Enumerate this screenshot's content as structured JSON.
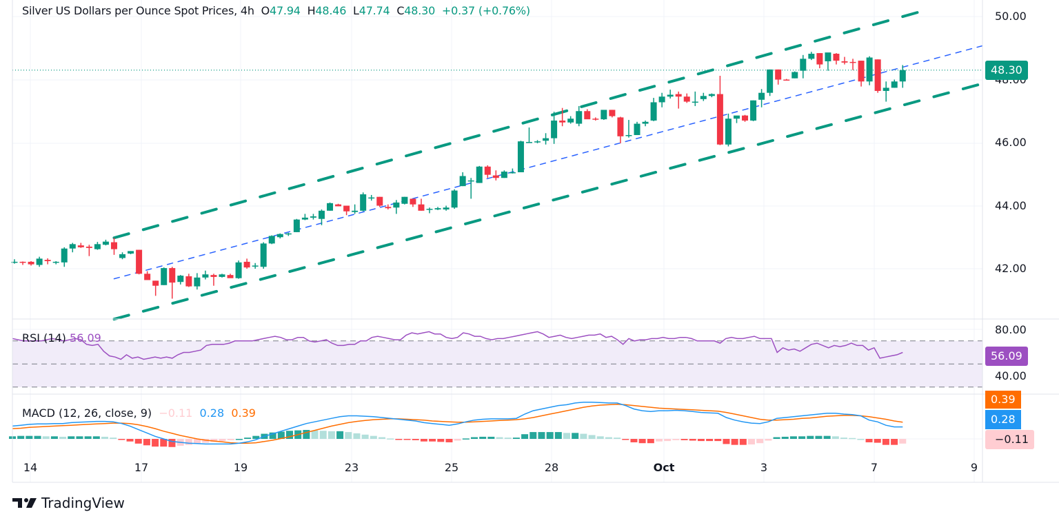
{
  "header": {
    "symbol_title": "Silver US Dollars per Ounce Spot Prices, 4h",
    "open_label": "O",
    "open": "47.94",
    "high_label": "H",
    "high": "48.46",
    "low_label": "L",
    "low": "47.74",
    "close_label": "C",
    "close": "48.30",
    "change": "+0.37",
    "change_pct": "(+0.76%)"
  },
  "price_axis": {
    "ticks": [
      "50.00",
      "48.00",
      "46.00",
      "44.00",
      "42.00"
    ],
    "last_price_badge": "48.30"
  },
  "rsi": {
    "label": "RSI (14)",
    "value": "56.09",
    "axis_ticks": [
      "80.00",
      "40.00"
    ],
    "badge": "56.09",
    "color": "#9c4fc1"
  },
  "macd": {
    "label": "MACD (12, 26, close, 9)",
    "histogram_value": "−0.11",
    "macd_value": "0.28",
    "signal_value": "0.39",
    "badges": {
      "signal": "0.39",
      "macd": "0.28",
      "histogram": "−0.11"
    },
    "colors": {
      "macd": "#2196f3",
      "signal": "#ff6d00",
      "hist_up_strong": "#26a69a",
      "hist_up_weak": "#b2dfdb",
      "hist_down_strong": "#ff5252",
      "hist_down_weak": "#ffcdd2"
    }
  },
  "time_axis": {
    "labels": [
      "14",
      "17",
      "19",
      "23",
      "25",
      "28",
      "Oct",
      "3",
      "7",
      "9"
    ]
  },
  "branding": {
    "name": "TradingView"
  },
  "colors": {
    "up": "#089981",
    "down": "#f23645",
    "channel": "#089981",
    "midline": "#2962ff",
    "rsi_band": "#ede7f6"
  },
  "chart_data": {
    "type": "candlestick",
    "title": "Silver US Dollars per Ounce Spot Prices, 4h",
    "ylabel": "USD per ounce",
    "ylim": [
      40.5,
      50.3
    ],
    "x_tick_labels": [
      "14",
      "17",
      "19",
      "23",
      "25",
      "28",
      "Oct",
      "3",
      "7",
      "9"
    ],
    "ohlc": [
      [
        42.22,
        42.3,
        42.16,
        42.22
      ],
      [
        42.22,
        42.23,
        42.12,
        42.2
      ],
      [
        42.22,
        42.24,
        42.1,
        42.14
      ],
      [
        42.12,
        42.38,
        42.06,
        42.32
      ],
      [
        42.28,
        42.33,
        42.14,
        42.24
      ],
      [
        42.22,
        42.24,
        42.14,
        42.22
      ],
      [
        42.2,
        42.68,
        42.06,
        42.64
      ],
      [
        42.64,
        42.82,
        42.52,
        42.78
      ],
      [
        42.74,
        42.82,
        42.66,
        42.68
      ],
      [
        42.7,
        42.76,
        42.4,
        42.66
      ],
      [
        42.62,
        42.85,
        42.6,
        42.78
      ],
      [
        42.76,
        42.92,
        42.74,
        42.86
      ],
      [
        42.84,
        42.98,
        42.44,
        42.62
      ],
      [
        42.34,
        42.52,
        42.3,
        42.46
      ],
      [
        42.48,
        42.56,
        42.46,
        42.56
      ],
      [
        42.6,
        42.6,
        41.82,
        41.84
      ],
      [
        41.84,
        41.92,
        41.72,
        41.64
      ],
      [
        41.62,
        41.62,
        41.14,
        41.46
      ],
      [
        41.48,
        42.04,
        41.48,
        42.02
      ],
      [
        42.02,
        42.06,
        41.05,
        41.56
      ],
      [
        41.58,
        41.8,
        41.5,
        41.78
      ],
      [
        41.76,
        41.84,
        41.42,
        41.44
      ],
      [
        41.44,
        41.86,
        41.34,
        41.72
      ],
      [
        41.72,
        41.94,
        41.66,
        41.82
      ],
      [
        41.8,
        41.84,
        41.46,
        41.74
      ],
      [
        41.74,
        41.84,
        41.72,
        41.82
      ],
      [
        41.8,
        41.84,
        41.72,
        41.7
      ],
      [
        41.7,
        42.26,
        41.68,
        42.2
      ],
      [
        42.22,
        42.32,
        42.0,
        42.04
      ],
      [
        42.1,
        42.18,
        42.0,
        42.1
      ],
      [
        42.06,
        42.84,
        42.0,
        42.8
      ],
      [
        42.8,
        43.06,
        42.78,
        43.04
      ],
      [
        43.0,
        43.12,
        42.96,
        43.1
      ],
      [
        43.1,
        43.14,
        43.04,
        43.12
      ],
      [
        43.16,
        43.58,
        43.16,
        43.56
      ],
      [
        43.56,
        43.74,
        43.54,
        43.62
      ],
      [
        43.62,
        43.74,
        43.56,
        43.66
      ],
      [
        43.58,
        43.88,
        43.38,
        43.84
      ],
      [
        43.84,
        44.1,
        43.84,
        44.08
      ],
      [
        44.04,
        44.06,
        43.98,
        43.98
      ],
      [
        44.0,
        44.0,
        43.7,
        43.82
      ],
      [
        43.8,
        44.04,
        43.74,
        43.84
      ],
      [
        43.84,
        44.42,
        43.82,
        44.36
      ],
      [
        44.26,
        44.34,
        44.16,
        44.26
      ],
      [
        44.28,
        44.28,
        43.96,
        44.0
      ],
      [
        43.96,
        44.04,
        43.88,
        43.92
      ],
      [
        43.94,
        44.18,
        43.74,
        44.1
      ],
      [
        44.06,
        44.28,
        44.04,
        44.28
      ],
      [
        44.22,
        44.22,
        43.96,
        44.04
      ],
      [
        44.04,
        44.22,
        43.84,
        43.84
      ],
      [
        43.88,
        43.94,
        43.76,
        43.9
      ],
      [
        43.88,
        43.96,
        43.86,
        43.92
      ],
      [
        43.88,
        44.0,
        43.84,
        43.94
      ],
      [
        43.94,
        44.52,
        43.9,
        44.48
      ],
      [
        44.62,
        45.06,
        44.62,
        44.94
      ],
      [
        44.8,
        44.88,
        44.22,
        44.8
      ],
      [
        44.72,
        45.26,
        44.72,
        45.24
      ],
      [
        45.24,
        45.28,
        44.88,
        44.98
      ],
      [
        44.96,
        45.12,
        44.8,
        44.88
      ],
      [
        44.88,
        45.12,
        44.88,
        45.08
      ],
      [
        45.06,
        45.18,
        45.02,
        45.06
      ],
      [
        45.06,
        46.06,
        45.06,
        46.04
      ],
      [
        46.02,
        46.48,
        46.0,
        46.02
      ],
      [
        46.04,
        46.08,
        45.98,
        46.04
      ],
      [
        46.06,
        46.3,
        45.94,
        46.14
      ],
      [
        46.14,
        46.98,
        45.96,
        46.7
      ],
      [
        46.7,
        47.1,
        46.52,
        46.64
      ],
      [
        46.64,
        46.84,
        46.6,
        46.76
      ],
      [
        46.6,
        47.16,
        46.52,
        47.0
      ],
      [
        47.0,
        47.06,
        46.8,
        46.74
      ],
      [
        46.76,
        46.8,
        46.7,
        46.74
      ],
      [
        46.74,
        47.02,
        46.72,
        47.04
      ],
      [
        47.04,
        47.04,
        46.8,
        46.84
      ],
      [
        46.8,
        46.82,
        45.98,
        46.2
      ],
      [
        46.22,
        46.72,
        46.16,
        46.24
      ],
      [
        46.24,
        46.66,
        46.24,
        46.6
      ],
      [
        46.6,
        46.7,
        46.52,
        46.66
      ],
      [
        46.7,
        47.42,
        46.68,
        47.28
      ],
      [
        47.28,
        47.58,
        47.12,
        47.46
      ],
      [
        47.46,
        47.68,
        47.4,
        47.52
      ],
      [
        47.54,
        47.62,
        47.08,
        47.46
      ],
      [
        47.46,
        47.56,
        47.26,
        47.3
      ],
      [
        47.3,
        47.62,
        47.16,
        47.3
      ],
      [
        47.38,
        47.58,
        47.32,
        47.48
      ],
      [
        47.48,
        47.56,
        47.44,
        47.54
      ],
      [
        47.54,
        48.12,
        45.92,
        45.94
      ],
      [
        45.94,
        46.92,
        45.88,
        46.76
      ],
      [
        46.76,
        46.84,
        46.62,
        46.86
      ],
      [
        46.86,
        46.88,
        46.66,
        46.7
      ],
      [
        46.7,
        47.34,
        46.68,
        47.34
      ],
      [
        47.36,
        47.7,
        47.12,
        47.58
      ],
      [
        47.58,
        48.32,
        47.48,
        48.32
      ],
      [
        48.32,
        48.32,
        47.84,
        48.0
      ],
      [
        48.0,
        48.02,
        47.98,
        47.98
      ],
      [
        48.04,
        48.26,
        48.04,
        48.24
      ],
      [
        48.28,
        48.78,
        48.04,
        48.66
      ],
      [
        48.66,
        48.88,
        48.62,
        48.82
      ],
      [
        48.84,
        48.84,
        48.36,
        48.48
      ],
      [
        48.58,
        48.84,
        48.28,
        48.86
      ],
      [
        48.82,
        48.84,
        48.48,
        48.6
      ],
      [
        48.58,
        48.72,
        48.48,
        48.54
      ],
      [
        48.56,
        48.66,
        48.3,
        48.54
      ],
      [
        48.6,
        48.6,
        47.78,
        47.94
      ],
      [
        47.94,
        48.74,
        47.82,
        48.7
      ],
      [
        48.64,
        48.64,
        47.58,
        47.64
      ],
      [
        47.64,
        47.94,
        47.3,
        47.74
      ],
      [
        47.74,
        48.0,
        47.74,
        47.94
      ],
      [
        47.94,
        48.46,
        47.74,
        48.3
      ]
    ],
    "channel": {
      "upper_start": {
        "bar": 12,
        "price": 42.98
      },
      "upper_end": {
        "bar": 110,
        "price": 50.22
      },
      "mid_start": {
        "bar": 12,
        "price": 41.68
      },
      "mid_end": {
        "bar": 117,
        "price": 49.1
      },
      "lower_start": {
        "bar": 12,
        "price": 40.4
      },
      "lower_end": {
        "bar": 117,
        "price": 47.9
      }
    },
    "last_price_line": 48.3,
    "rsi_values": [
      72,
      71,
      70,
      70,
      70,
      70,
      71,
      72,
      71,
      70,
      71,
      72,
      71,
      67,
      66,
      67,
      61,
      57,
      56,
      54,
      58,
      55,
      56,
      54,
      55,
      56,
      55,
      56,
      55,
      58,
      60,
      60,
      61,
      62,
      66,
      67,
      67,
      67,
      68,
      70,
      70,
      70,
      70,
      71,
      72,
      73,
      74,
      73,
      71,
      71,
      73,
      73,
      70,
      69,
      70,
      71,
      68,
      66,
      66,
      67,
      67,
      70,
      70,
      73,
      74,
      73,
      72,
      71,
      71,
      75,
      77,
      76,
      77,
      78,
      76,
      76,
      73,
      72,
      73,
      77,
      76,
      74,
      74,
      72,
      71,
      72,
      72,
      73,
      74,
      75,
      76,
      77,
      78,
      76,
      73,
      74,
      75,
      73,
      72,
      73,
      74,
      75,
      75,
      76,
      73,
      74,
      71,
      67,
      72,
      70,
      71,
      71,
      72,
      72,
      73,
      72,
      72,
      73,
      73,
      72,
      70,
      70,
      70,
      70,
      68,
      72,
      73,
      72,
      72,
      73,
      74,
      72,
      72,
      72,
      60,
      64,
      62,
      63,
      61,
      64,
      67,
      68,
      66,
      64,
      66,
      65,
      66,
      68,
      66,
      66,
      62,
      64,
      55,
      56,
      57,
      58,
      60
    ],
    "macd_values": [
      0.3,
      0.32,
      0.34,
      0.35,
      0.35,
      0.36,
      0.36,
      0.38,
      0.39,
      0.4,
      0.41,
      0.41,
      0.4,
      0.36,
      0.3,
      0.22,
      0.14,
      0.06,
      0.0,
      -0.06,
      -0.08,
      -0.1,
      -0.11,
      -0.12,
      -0.12,
      -0.12,
      -0.12,
      -0.1,
      -0.07,
      -0.02,
      0.06,
      0.12,
      0.18,
      0.24,
      0.3,
      0.36,
      0.4,
      0.44,
      0.48,
      0.52,
      0.54,
      0.54,
      0.53,
      0.52,
      0.5,
      0.48,
      0.46,
      0.44,
      0.42,
      0.38,
      0.36,
      0.34,
      0.32,
      0.35,
      0.4,
      0.44,
      0.46,
      0.47,
      0.47,
      0.47,
      0.48,
      0.58,
      0.66,
      0.7,
      0.74,
      0.78,
      0.8,
      0.84,
      0.86,
      0.86,
      0.85,
      0.84,
      0.84,
      0.78,
      0.7,
      0.66,
      0.64,
      0.66,
      0.66,
      0.67,
      0.66,
      0.64,
      0.62,
      0.61,
      0.6,
      0.5,
      0.44,
      0.4,
      0.37,
      0.36,
      0.4,
      0.48,
      0.5,
      0.52,
      0.54,
      0.56,
      0.58,
      0.6,
      0.6,
      0.58,
      0.57,
      0.54,
      0.44,
      0.4,
      0.32,
      0.28,
      0.28
    ],
    "signal_values": [
      0.24,
      0.25,
      0.27,
      0.28,
      0.29,
      0.3,
      0.31,
      0.32,
      0.33,
      0.34,
      0.35,
      0.36,
      0.37,
      0.37,
      0.36,
      0.33,
      0.29,
      0.24,
      0.18,
      0.13,
      0.08,
      0.04,
      0.0,
      -0.03,
      -0.05,
      -0.07,
      -0.09,
      -0.1,
      -0.1,
      -0.09,
      -0.06,
      -0.03,
      0.01,
      0.05,
      0.1,
      0.15,
      0.2,
      0.25,
      0.3,
      0.34,
      0.38,
      0.41,
      0.43,
      0.45,
      0.46,
      0.47,
      0.47,
      0.46,
      0.45,
      0.44,
      0.42,
      0.41,
      0.4,
      0.39,
      0.39,
      0.4,
      0.41,
      0.42,
      0.43,
      0.44,
      0.45,
      0.47,
      0.5,
      0.54,
      0.58,
      0.62,
      0.66,
      0.7,
      0.74,
      0.77,
      0.79,
      0.8,
      0.81,
      0.8,
      0.78,
      0.76,
      0.74,
      0.72,
      0.71,
      0.7,
      0.69,
      0.68,
      0.67,
      0.66,
      0.65,
      0.62,
      0.58,
      0.54,
      0.5,
      0.46,
      0.44,
      0.44,
      0.45,
      0.46,
      0.48,
      0.49,
      0.51,
      0.53,
      0.54,
      0.55,
      0.55,
      0.54,
      0.52,
      0.49,
      0.46,
      0.42,
      0.39
    ],
    "histogram_values": [
      0.06,
      0.07,
      0.07,
      0.07,
      0.06,
      0.06,
      0.05,
      0.06,
      0.06,
      0.06,
      0.06,
      0.05,
      0.03,
      -0.01,
      -0.06,
      -0.11,
      -0.15,
      -0.18,
      -0.18,
      -0.19,
      -0.16,
      -0.14,
      -0.11,
      -0.09,
      -0.07,
      -0.05,
      -0.03,
      0.0,
      0.03,
      0.07,
      0.12,
      0.15,
      0.17,
      0.19,
      0.2,
      0.21,
      0.2,
      0.19,
      0.18,
      0.18,
      0.16,
      0.13,
      0.1,
      0.07,
      0.04,
      0.01,
      -0.01,
      -0.02,
      -0.03,
      -0.06,
      -0.06,
      -0.07,
      -0.08,
      -0.04,
      0.01,
      0.04,
      0.05,
      0.05,
      0.04,
      0.03,
      0.03,
      0.11,
      0.16,
      0.16,
      0.16,
      0.16,
      0.14,
      0.14,
      0.12,
      0.09,
      0.06,
      0.04,
      0.03,
      -0.02,
      -0.08,
      -0.1,
      -0.1,
      -0.06,
      -0.05,
      -0.03,
      -0.03,
      -0.04,
      -0.05,
      -0.05,
      -0.05,
      -0.12,
      -0.14,
      -0.14,
      -0.13,
      -0.1,
      -0.04,
      0.04,
      0.05,
      0.06,
      0.06,
      0.07,
      0.07,
      0.07,
      0.06,
      0.03,
      0.02,
      0.0,
      -0.08,
      -0.09,
      -0.14,
      -0.14,
      -0.11
    ]
  }
}
